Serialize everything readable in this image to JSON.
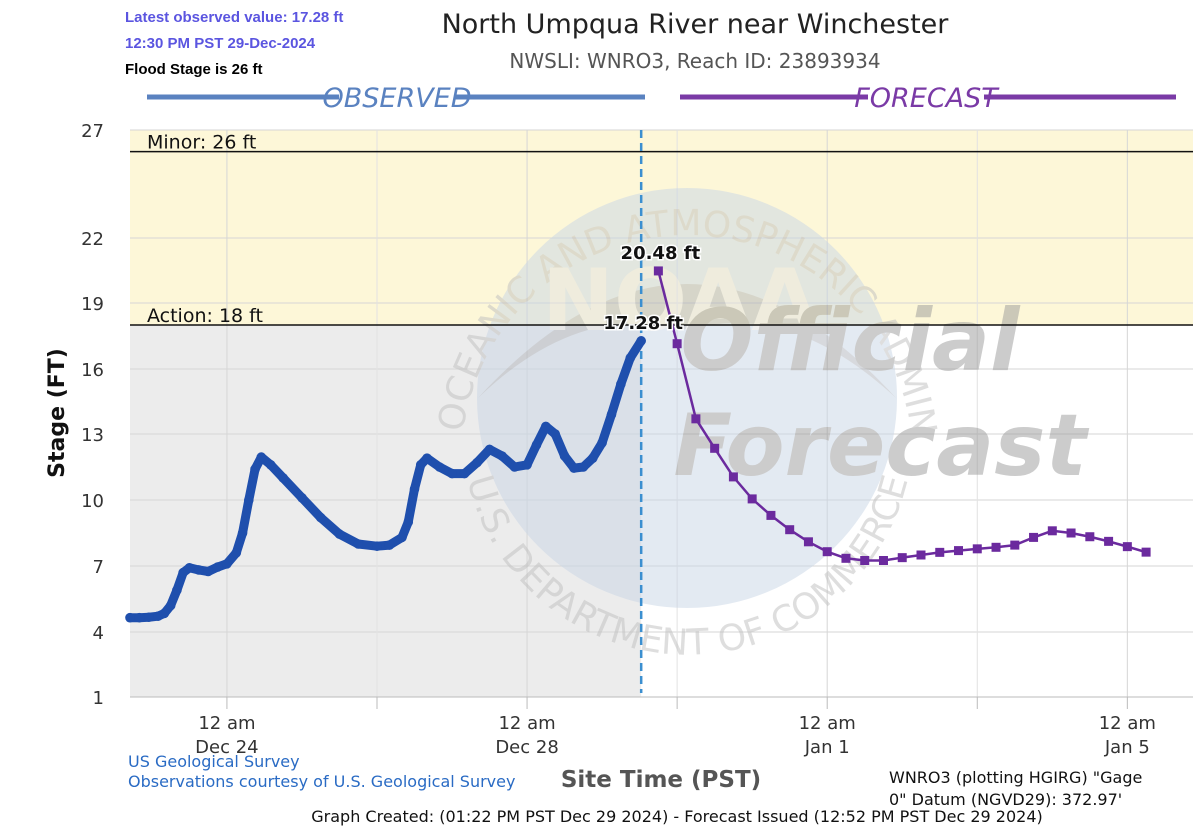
{
  "header": {
    "latest_value": "Latest observed value: 17.28 ft",
    "latest_time": "12:30 PM PST 29-Dec-2024",
    "flood_stage": "Flood Stage is 26 ft"
  },
  "footer": {
    "source1": "US Geological Survey",
    "source2": "Observations courtesy of U.S. Geological Survey",
    "datum": "WNRO3 (plotting HGIRG) \"Gage 0\" Datum (NGVD29): 372.97'",
    "datum_line1": "WNRO3 (plotting HGIRG) \"Gage",
    "datum_line2": "0\" Datum (NGVD29): 372.97'",
    "created": "Graph Created: (01:22 PM PST Dec 29 2024) - Forecast Issued (12:52 PM PST Dec 29 2024)"
  },
  "watermark": {
    "ring_text": "NATIONAL OCEANIC AND ATMOSPHERIC ADMINISTRATION",
    "ring_bottom": "U.S. DEPARTMENT OF COMMERCE",
    "logo_text": "NOAA",
    "official": "Official",
    "forecast": "Forecast"
  },
  "colors": {
    "observed": "#1f4fad",
    "forecast": "#6b2a9e",
    "flood_band": "#fdf7d8",
    "observed_bg": "#ececec",
    "divider": "#3b8fd0",
    "observed_banner": "#5a82c0",
    "forecast_banner": "#7a3aa6"
  },
  "chart_data": {
    "type": "line",
    "title": "North Umpqua River near Winchester",
    "subtitle": "NWSLI: WNRO3, Reach ID: 23893934",
    "ylabel": "Stage (FT)",
    "xlabel": "Site Time (PST)",
    "ylim": [
      0,
      27
    ],
    "yticks": [
      1,
      4,
      7,
      10,
      13,
      16,
      19,
      22,
      27
    ],
    "xlim": [
      "2024-12-22T17:00",
      "2025-01-05T21:00"
    ],
    "xticks": [
      {
        "x": "2024-12-24T00:00",
        "line1": "12 am",
        "line2": "Dec 24"
      },
      {
        "x": "2024-12-28T00:00",
        "line1": "12 am",
        "line2": "Dec 28"
      },
      {
        "x": "2025-01-01T00:00",
        "line1": "12 am",
        "line2": "Jan 1"
      },
      {
        "x": "2025-01-05T00:00",
        "line1": "12 am",
        "line2": "Jan 5"
      }
    ],
    "minor_xticks": [
      "2024-12-26T00:00",
      "2024-12-30T00:00",
      "2025-01-03T00:00"
    ],
    "grid": true,
    "observed_label": "OBSERVED",
    "forecast_label": "FORECAST",
    "divider_x": "2024-12-29T12:30",
    "thresholds": [
      {
        "name": "Minor",
        "label": "Minor: 26 ft",
        "value": 26
      },
      {
        "name": "Action",
        "label": "Action: 18 ft",
        "value": 18
      }
    ],
    "annotations": [
      {
        "text": "20.48 ft",
        "x": "2024-12-29T18:00",
        "y": 20.48
      },
      {
        "text": "17.28 ft",
        "x": "2024-12-29T12:30",
        "y": 17.28
      }
    ],
    "series": [
      {
        "name": "Observed",
        "marker": "circle",
        "points": [
          [
            "2024-12-22T17:00",
            4.65
          ],
          [
            "2024-12-22T20:00",
            4.65
          ],
          [
            "2024-12-22T23:00",
            4.67
          ],
          [
            "2024-12-23T02:00",
            4.72
          ],
          [
            "2024-12-23T04:00",
            4.85
          ],
          [
            "2024-12-23T06:00",
            5.2
          ],
          [
            "2024-12-23T08:00",
            5.9
          ],
          [
            "2024-12-23T10:00",
            6.7
          ],
          [
            "2024-12-23T12:00",
            6.92
          ],
          [
            "2024-12-23T15:00",
            6.82
          ],
          [
            "2024-12-23T18:00",
            6.75
          ],
          [
            "2024-12-23T21:00",
            6.95
          ],
          [
            "2024-12-24T00:00",
            7.1
          ],
          [
            "2024-12-24T03:00",
            7.6
          ],
          [
            "2024-12-24T05:00",
            8.5
          ],
          [
            "2024-12-24T07:00",
            10.0
          ],
          [
            "2024-12-24T09:00",
            11.4
          ],
          [
            "2024-12-24T11:00",
            11.95
          ],
          [
            "2024-12-24T14:00",
            11.6
          ],
          [
            "2024-12-24T18:00",
            11.0
          ],
          [
            "2024-12-25T00:00",
            10.1
          ],
          [
            "2024-12-25T06:00",
            9.2
          ],
          [
            "2024-12-25T12:00",
            8.45
          ],
          [
            "2024-12-25T18:00",
            8.0
          ],
          [
            "2024-12-26T00:00",
            7.9
          ],
          [
            "2024-12-26T04:00",
            7.95
          ],
          [
            "2024-12-26T08:00",
            8.3
          ],
          [
            "2024-12-26T10:00",
            9.0
          ],
          [
            "2024-12-26T12:00",
            10.5
          ],
          [
            "2024-12-26T14:00",
            11.6
          ],
          [
            "2024-12-26T16:00",
            11.9
          ],
          [
            "2024-12-26T20:00",
            11.5
          ],
          [
            "2024-12-27T00:00",
            11.2
          ],
          [
            "2024-12-27T04:00",
            11.2
          ],
          [
            "2024-12-27T08:00",
            11.7
          ],
          [
            "2024-12-27T12:00",
            12.3
          ],
          [
            "2024-12-27T16:00",
            12.0
          ],
          [
            "2024-12-27T20:00",
            11.5
          ],
          [
            "2024-12-28T00:00",
            11.6
          ],
          [
            "2024-12-28T03:00",
            12.5
          ],
          [
            "2024-12-28T06:00",
            13.35
          ],
          [
            "2024-12-28T09:00",
            13.0
          ],
          [
            "2024-12-28T12:00",
            12.0
          ],
          [
            "2024-12-28T15:00",
            11.45
          ],
          [
            "2024-12-28T18:00",
            11.5
          ],
          [
            "2024-12-28T21:00",
            11.9
          ],
          [
            "2024-12-29T00:00",
            12.6
          ],
          [
            "2024-12-29T03:00",
            13.9
          ],
          [
            "2024-12-29T06:00",
            15.3
          ],
          [
            "2024-12-29T09:00",
            16.5
          ],
          [
            "2024-12-29T12:30",
            17.28
          ]
        ]
      },
      {
        "name": "Forecast",
        "marker": "square",
        "points": [
          [
            "2024-12-29T18:00",
            20.48
          ],
          [
            "2024-12-30T00:00",
            17.15
          ],
          [
            "2024-12-30T06:00",
            13.7
          ],
          [
            "2024-12-30T12:00",
            12.35
          ],
          [
            "2024-12-30T18:00",
            11.05
          ],
          [
            "2024-12-31T00:00",
            10.05
          ],
          [
            "2024-12-31T06:00",
            9.3
          ],
          [
            "2024-12-31T12:00",
            8.65
          ],
          [
            "2024-12-31T18:00",
            8.1
          ],
          [
            "2025-01-01T00:00",
            7.65
          ],
          [
            "2025-01-01T06:00",
            7.35
          ],
          [
            "2025-01-01T12:00",
            7.25
          ],
          [
            "2025-01-01T18:00",
            7.25
          ],
          [
            "2025-01-02T00:00",
            7.38
          ],
          [
            "2025-01-02T06:00",
            7.5
          ],
          [
            "2025-01-02T12:00",
            7.62
          ],
          [
            "2025-01-02T18:00",
            7.7
          ],
          [
            "2025-01-03T00:00",
            7.78
          ],
          [
            "2025-01-03T06:00",
            7.85
          ],
          [
            "2025-01-03T12:00",
            7.95
          ],
          [
            "2025-01-03T18:00",
            8.3
          ],
          [
            "2025-01-04T00:00",
            8.6
          ],
          [
            "2025-01-04T06:00",
            8.5
          ],
          [
            "2025-01-04T12:00",
            8.33
          ],
          [
            "2025-01-04T18:00",
            8.12
          ],
          [
            "2025-01-05T00:00",
            7.88
          ],
          [
            "2025-01-05T06:00",
            7.63
          ]
        ]
      }
    ]
  }
}
